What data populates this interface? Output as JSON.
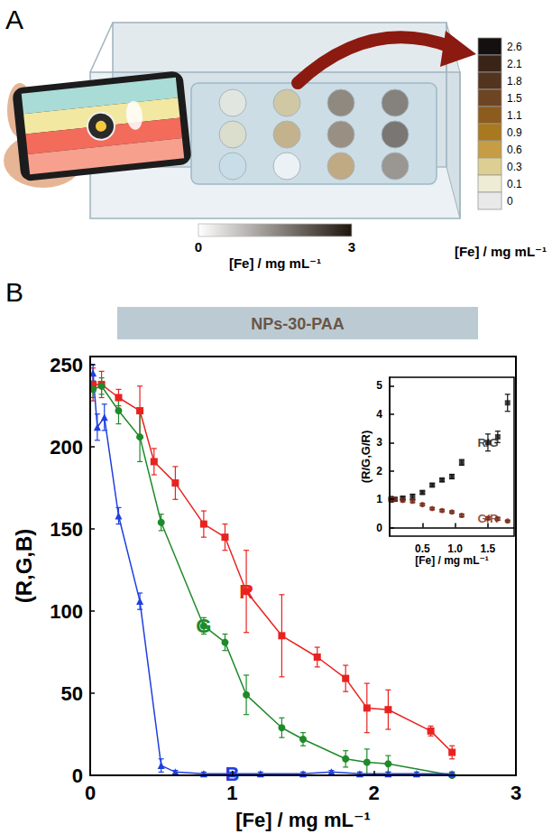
{
  "letters": [
    "A",
    "B"
  ],
  "panel_a": {
    "gradient": {
      "label": "[Fe] / mg mL⁻¹",
      "xlim": [
        0,
        3
      ],
      "xticks": [
        0,
        3
      ],
      "colors": [
        "#ffffff",
        "#1e150c"
      ]
    },
    "colorbar": {
      "label": "[Fe] / mg mL⁻¹",
      "values": [
        2.6,
        2.1,
        1.8,
        1.5,
        1.1,
        0.9,
        0.6,
        0.3,
        0.1,
        0
      ],
      "colors": [
        "#151010",
        "#3a2418",
        "#52341f",
        "#6e4522",
        "#8c5c1e",
        "#a8791f",
        "#c69d45",
        "#ddcf92",
        "#efecd6",
        "#e9e9e9"
      ]
    }
  },
  "chart_data": [
    {
      "type": "line",
      "title": "NPs-30-PAA",
      "x_label": "[Fe] / mg mL⁻¹",
      "y_label": "(R,G,B)",
      "xlim": [
        0,
        3
      ],
      "xticks": [
        0,
        1,
        2,
        3
      ],
      "ylim": [
        0,
        255
      ],
      "yticks": [
        0,
        50,
        100,
        150,
        200,
        250
      ],
      "grid": false,
      "series": [
        {
          "name": "R",
          "color": "#e8231f",
          "marker": "square",
          "line_style": "solid",
          "x": [
            0.02,
            0.08,
            0.2,
            0.35,
            0.45,
            0.6,
            0.8,
            0.95,
            1.1,
            1.35,
            1.6,
            1.8,
            1.95,
            2.1,
            2.4,
            2.55
          ],
          "values": [
            238,
            238,
            230,
            222,
            191,
            178,
            153,
            145,
            112,
            85,
            72,
            59,
            41,
            40,
            27,
            14
          ],
          "errors": [
            10,
            8,
            5,
            15,
            8,
            10,
            8,
            8,
            25,
            25,
            6,
            8,
            15,
            12,
            3,
            4
          ]
        },
        {
          "name": "G",
          "color": "#1f8a2a",
          "marker": "circle",
          "line_style": "solid",
          "x": [
            0.02,
            0.08,
            0.2,
            0.35,
            0.5,
            0.8,
            0.95,
            1.1,
            1.35,
            1.5,
            1.8,
            1.95,
            2.1,
            2.55
          ],
          "values": [
            235,
            237,
            222,
            206,
            154,
            91,
            81,
            49,
            29,
            22,
            10,
            8,
            7,
            0
          ],
          "errors": [
            5,
            5,
            8,
            15,
            5,
            5,
            5,
            12,
            6,
            4,
            5,
            8,
            5,
            2
          ]
        },
        {
          "name": "B",
          "color": "#1f3fe0",
          "marker": "triangle",
          "line_style": "solid",
          "x": [
            0.02,
            0.05,
            0.1,
            0.2,
            0.35,
            0.5,
            0.6,
            0.8,
            1.0,
            1.2,
            1.5,
            1.7,
            1.9,
            2.1,
            2.3,
            2.55
          ],
          "values": [
            245,
            212,
            218,
            158,
            106,
            6,
            2,
            1,
            1,
            1,
            1,
            2,
            1,
            1,
            1,
            1
          ],
          "errors": [
            5,
            8,
            8,
            5,
            5,
            4,
            1,
            1,
            1,
            1,
            1,
            1,
            1,
            1,
            1,
            1
          ]
        }
      ]
    },
    {
      "type": "scatter",
      "x_label": "[Fe] / mg mL⁻¹",
      "y_label": "(R/G,G/R)",
      "xlim": [
        0,
        1.9
      ],
      "xticks": [
        0.5,
        {
          "value": 1,
          "label": "1.0"
        },
        1.5
      ],
      "ylim": [
        -0.3,
        5.3
      ],
      "yticks": [
        0,
        1,
        2,
        3,
        4,
        5
      ],
      "grid": false,
      "series": [
        {
          "name": "R/G",
          "color": "#111111",
          "marker": "square",
          "x": [
            0.02,
            0.08,
            0.2,
            0.35,
            0.5,
            0.65,
            0.8,
            0.95,
            1.1,
            1.5,
            1.65,
            1.8
          ],
          "values": [
            1.0,
            1.0,
            1.04,
            1.08,
            1.24,
            1.5,
            1.68,
            1.8,
            2.3,
            3.0,
            3.2,
            4.4
          ],
          "errors": [
            0.1,
            0.05,
            0.05,
            0.1,
            0.05,
            0.05,
            0.05,
            0.08,
            0.1,
            0.3,
            0.2,
            0.3
          ]
        },
        {
          "name": "G/R",
          "color": "#7a2a1a",
          "marker": "circle",
          "x": [
            0.02,
            0.08,
            0.2,
            0.35,
            0.5,
            0.65,
            0.8,
            0.95,
            1.1,
            1.5,
            1.65,
            1.8
          ],
          "values": [
            1.0,
            1.0,
            0.96,
            0.93,
            0.81,
            0.67,
            0.6,
            0.55,
            0.43,
            0.33,
            0.31,
            0.23
          ],
          "errors": [
            0.05,
            0.05,
            0.05,
            0.05,
            0.04,
            0.04,
            0.04,
            0.04,
            0.05,
            0.05,
            0.05,
            0.03
          ]
        }
      ]
    }
  ]
}
